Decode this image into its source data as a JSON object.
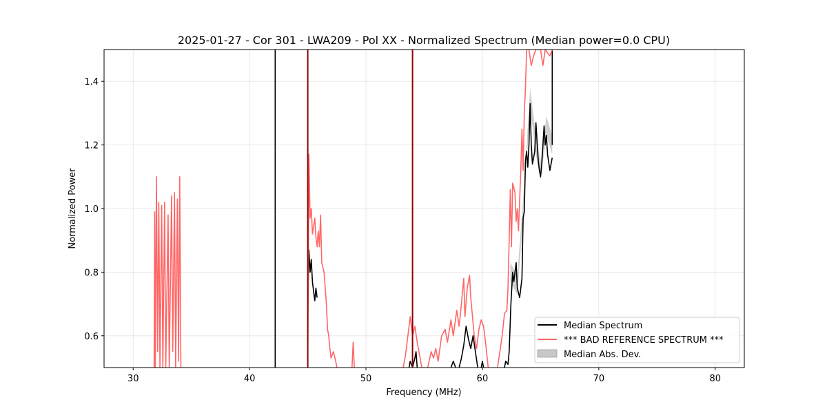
{
  "chart_data": {
    "type": "line",
    "title": "2025-01-27 - Cor 301 - LWA209 - Pol XX - Normalized Spectrum (Median power=0.0 CPU)",
    "xlabel": "Frequency (MHz)",
    "ylabel": "Normalized Power",
    "xlim": [
      27.5,
      82.5
    ],
    "ylim": [
      0.5,
      1.5
    ],
    "xticks": [
      30,
      40,
      50,
      60,
      70,
      80
    ],
    "yticks": [
      0.6,
      0.8,
      1.0,
      1.2,
      1.4
    ],
    "xtick_labels": [
      "30",
      "40",
      "50",
      "60",
      "70",
      "80"
    ],
    "ytick_labels": [
      "0.6",
      "0.8",
      "1.0",
      "1.2",
      "1.4"
    ],
    "grid": true,
    "legend_position": "bottom-right",
    "colors": {
      "median": "#000000",
      "reference": "#ff6666",
      "mad": "#b0b0b0",
      "dark_red": "#8b0000"
    },
    "series": [
      {
        "name": "Median Spectrum",
        "color": "#000000",
        "segments": [
          [
            [
              42.2,
              0.5
            ],
            [
              42.2,
              1.5
            ]
          ],
          [
            [
              45.0,
              0.7
            ],
            [
              45.1,
              0.87
            ],
            [
              45.2,
              0.8
            ],
            [
              45.3,
              0.84
            ],
            [
              45.4,
              0.77
            ],
            [
              45.5,
              0.74
            ],
            [
              45.6,
              0.71
            ],
            [
              45.7,
              0.75
            ],
            [
              45.8,
              0.72
            ]
          ],
          [
            [
              53.7,
              0.5
            ],
            [
              53.8,
              0.52
            ],
            [
              53.9,
              0.51
            ],
            [
              54.0,
              0.5
            ]
          ],
          [
            [
              54.0,
              0.5
            ],
            [
              54.2,
              0.53
            ],
            [
              54.3,
              0.55
            ],
            [
              54.4,
              0.5
            ]
          ],
          [
            [
              57.3,
              0.5
            ],
            [
              57.5,
              0.52
            ],
            [
              57.7,
              0.5
            ]
          ],
          [
            [
              58.0,
              0.5
            ],
            [
              58.2,
              0.53
            ],
            [
              58.4,
              0.57
            ],
            [
              58.6,
              0.63
            ],
            [
              58.8,
              0.59
            ],
            [
              59.0,
              0.56
            ],
            [
              59.2,
              0.6
            ],
            [
              59.4,
              0.55
            ],
            [
              59.6,
              0.5
            ]
          ],
          [
            [
              59.9,
              0.5
            ],
            [
              60.0,
              0.52
            ],
            [
              60.1,
              0.5
            ]
          ],
          [
            [
              61.9,
              0.5
            ],
            [
              62.0,
              0.52
            ],
            [
              62.2,
              0.51
            ],
            [
              62.3,
              0.55
            ],
            [
              62.45,
              0.7
            ],
            [
              62.6,
              0.8
            ],
            [
              62.7,
              0.77
            ],
            [
              62.9,
              0.83
            ],
            [
              63.0,
              0.75
            ],
            [
              63.2,
              0.72
            ],
            [
              63.4,
              0.78
            ],
            [
              63.5,
              0.97
            ],
            [
              63.6,
              0.99
            ],
            [
              63.7,
              1.15
            ],
            [
              63.8,
              1.18
            ],
            [
              63.9,
              1.13
            ],
            [
              64.0,
              1.2
            ],
            [
              64.1,
              1.33
            ],
            [
              64.2,
              1.2
            ],
            [
              64.3,
              1.14
            ],
            [
              64.5,
              1.18
            ],
            [
              64.6,
              1.27
            ],
            [
              64.7,
              1.21
            ],
            [
              64.8,
              1.15
            ],
            [
              64.9,
              1.12
            ],
            [
              65.0,
              1.1
            ],
            [
              65.1,
              1.14
            ],
            [
              65.3,
              1.26
            ],
            [
              65.4,
              1.2
            ],
            [
              65.5,
              1.23
            ],
            [
              65.6,
              1.17
            ],
            [
              65.8,
              1.12
            ],
            [
              65.9,
              1.14
            ],
            [
              66.0,
              1.16
            ]
          ],
          [
            [
              66.0,
              1.2
            ],
            [
              66.0,
              1.5
            ]
          ]
        ]
      },
      {
        "name": "*** BAD REFERENCE SPECTRUM ***",
        "color": "#ff6666",
        "segments": [
          [
            [
              31.8,
              0.5
            ],
            [
              31.85,
              0.99
            ],
            [
              31.9,
              0.5
            ],
            [
              32.0,
              1.1
            ],
            [
              32.1,
              0.55
            ],
            [
              32.2,
              1.02
            ],
            [
              32.3,
              0.5
            ],
            [
              32.45,
              1.01
            ],
            [
              32.55,
              0.5
            ],
            [
              32.7,
              1.02
            ],
            [
              32.8,
              0.5
            ],
            [
              33.0,
              0.98
            ],
            [
              33.1,
              0.5
            ],
            [
              33.3,
              1.04
            ],
            [
              33.4,
              0.55
            ],
            [
              33.55,
              1.05
            ],
            [
              33.65,
              0.5
            ],
            [
              33.8,
              1.03
            ],
            [
              33.9,
              0.52
            ],
            [
              34.0,
              1.1
            ],
            [
              34.1,
              0.5
            ]
          ],
          [
            [
              45.0,
              0.52
            ],
            [
              45.1,
              1.17
            ],
            [
              45.2,
              0.97
            ],
            [
              45.3,
              1.0
            ],
            [
              45.4,
              0.92
            ],
            [
              45.6,
              0.97
            ],
            [
              45.7,
              0.91
            ],
            [
              45.8,
              0.88
            ],
            [
              45.9,
              0.93
            ],
            [
              46.0,
              0.88
            ],
            [
              46.1,
              0.98
            ],
            [
              46.2,
              0.83
            ],
            [
              46.4,
              0.8
            ],
            [
              46.5,
              0.75
            ],
            [
              46.6,
              0.7
            ],
            [
              46.7,
              0.62
            ],
            [
              46.8,
              0.6
            ],
            [
              46.9,
              0.56
            ],
            [
              47.0,
              0.53
            ],
            [
              47.2,
              0.55
            ],
            [
              47.4,
              0.52
            ],
            [
              47.5,
              0.5
            ]
          ],
          [
            [
              48.8,
              0.5
            ],
            [
              48.9,
              0.58
            ],
            [
              49.0,
              0.5
            ]
          ],
          [
            [
              53.2,
              0.5
            ],
            [
              53.4,
              0.54
            ],
            [
              53.6,
              0.6
            ],
            [
              53.8,
              0.66
            ],
            [
              54.0,
              0.6
            ],
            [
              54.2,
              0.63
            ],
            [
              54.4,
              0.58
            ],
            [
              54.6,
              0.54
            ],
            [
              54.8,
              0.5
            ]
          ],
          [
            [
              55.3,
              0.5
            ],
            [
              55.6,
              0.55
            ],
            [
              55.8,
              0.53
            ],
            [
              56.0,
              0.56
            ],
            [
              56.2,
              0.52
            ],
            [
              56.5,
              0.6
            ],
            [
              56.8,
              0.62
            ],
            [
              57.0,
              0.58
            ],
            [
              57.3,
              0.65
            ],
            [
              57.5,
              0.6
            ],
            [
              57.8,
              0.68
            ],
            [
              58.0,
              0.63
            ],
            [
              58.2,
              0.7
            ],
            [
              58.4,
              0.78
            ],
            [
              58.5,
              0.66
            ],
            [
              58.7,
              0.75
            ],
            [
              58.9,
              0.79
            ],
            [
              59.0,
              0.72
            ],
            [
              59.1,
              0.68
            ],
            [
              59.3,
              0.6
            ],
            [
              59.5,
              0.56
            ],
            [
              59.7,
              0.62
            ],
            [
              59.9,
              0.65
            ],
            [
              60.1,
              0.63
            ],
            [
              60.3,
              0.57
            ],
            [
              60.5,
              0.5
            ]
          ],
          [
            [
              61.3,
              0.5
            ],
            [
              61.5,
              0.55
            ],
            [
              61.7,
              0.6
            ],
            [
              61.9,
              0.67
            ],
            [
              62.1,
              0.68
            ],
            [
              62.2,
              0.75
            ],
            [
              62.3,
              0.9
            ],
            [
              62.4,
              1.06
            ],
            [
              62.5,
              0.88
            ],
            [
              62.6,
              1.08
            ],
            [
              62.8,
              1.05
            ],
            [
              62.9,
              0.96
            ],
            [
              63.0,
              1.0
            ],
            [
              63.1,
              0.93
            ],
            [
              63.3,
              1.12
            ],
            [
              63.4,
              1.25
            ],
            [
              63.5,
              1.12
            ],
            [
              63.6,
              1.3
            ],
            [
              63.7,
              1.38
            ],
            [
              63.8,
              1.5
            ],
            [
              64.0,
              1.5
            ],
            [
              64.2,
              1.45
            ],
            [
              64.4,
              1.48
            ],
            [
              64.6,
              1.5
            ],
            [
              65.0,
              1.5
            ],
            [
              65.2,
              1.45
            ],
            [
              65.4,
              1.5
            ],
            [
              65.8,
              1.48
            ],
            [
              66.0,
              1.5
            ]
          ]
        ]
      }
    ],
    "mad_band": [
      [
        62.4,
        0.8
      ],
      [
        63.0,
        0.76
      ],
      [
        63.6,
        1.05
      ],
      [
        64.1,
        1.35
      ],
      [
        64.6,
        1.2
      ],
      [
        65.0,
        1.12
      ],
      [
        65.5,
        1.26
      ],
      [
        66.0,
        1.2
      ]
    ],
    "vertical_lines": [
      {
        "x": 45.0,
        "color": "#8b0000"
      },
      {
        "x": 54.0,
        "color": "#8b0000"
      }
    ],
    "legend": [
      {
        "label": "Median Spectrum",
        "kind": "line",
        "color": "#000000"
      },
      {
        "label": "*** BAD REFERENCE SPECTRUM ***",
        "kind": "line",
        "color": "#ff6666"
      },
      {
        "label": "Median Abs. Dev.",
        "kind": "patch",
        "color": "#b0b0b0"
      }
    ]
  }
}
